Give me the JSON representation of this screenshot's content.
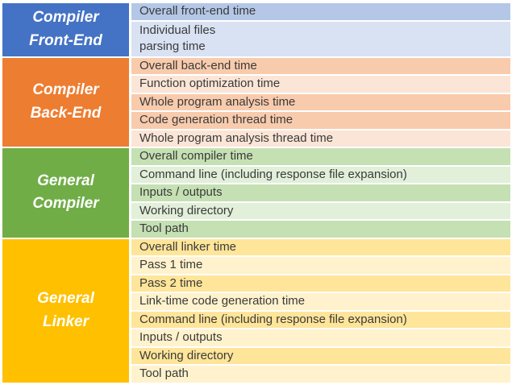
{
  "table": {
    "description": "Build timing categories table",
    "text_color": "#3a3a3a",
    "header_text_color": "#ffffff",
    "sections": [
      {
        "id": "compiler-front-end",
        "label_lines": [
          "Compiler",
          "Front-End"
        ],
        "header_color": "#4472C4",
        "tint_dark": "#B4C7E7",
        "tint_light": "#D9E2F3",
        "rows": [
          {
            "lines": [
              "Overall front-end time"
            ],
            "shade": "dark"
          },
          {
            "lines": [
              "Individual files",
              "parsing time"
            ],
            "shade": "light"
          }
        ]
      },
      {
        "id": "compiler-back-end",
        "label_lines": [
          "Compiler",
          "Back-End"
        ],
        "header_color": "#ED7D31",
        "tint_dark": "#F8CBAD",
        "tint_light": "#FBE5D6",
        "rows": [
          {
            "lines": [
              "Overall back-end time"
            ],
            "shade": "dark"
          },
          {
            "lines": [
              "Function optimization time"
            ],
            "shade": "light"
          },
          {
            "lines": [
              "Whole program analysis time"
            ],
            "shade": "dark"
          },
          {
            "lines": [
              "Code generation thread time"
            ],
            "shade": "dark"
          },
          {
            "lines": [
              "Whole program analysis thread time"
            ],
            "shade": "light"
          }
        ]
      },
      {
        "id": "general-compiler",
        "label_lines": [
          "General",
          "Compiler"
        ],
        "header_color": "#70AD47",
        "tint_dark": "#C5E0B3",
        "tint_light": "#E2EFD9",
        "rows": [
          {
            "lines": [
              "Overall compiler time"
            ],
            "shade": "dark"
          },
          {
            "lines": [
              "Command line (including response file expansion)"
            ],
            "shade": "light"
          },
          {
            "lines": [
              "Inputs / outputs"
            ],
            "shade": "dark"
          },
          {
            "lines": [
              "Working directory"
            ],
            "shade": "light"
          },
          {
            "lines": [
              "Tool path"
            ],
            "shade": "dark"
          }
        ]
      },
      {
        "id": "general-linker",
        "label_lines": [
          "General",
          "Linker"
        ],
        "header_color": "#FFC000",
        "tint_dark": "#FFE599",
        "tint_light": "#FFF2CC",
        "rows": [
          {
            "lines": [
              "Overall linker time"
            ],
            "shade": "dark"
          },
          {
            "lines": [
              "Pass 1 time"
            ],
            "shade": "light"
          },
          {
            "lines": [
              "Pass 2 time"
            ],
            "shade": "dark"
          },
          {
            "lines": [
              "Link-time code generation time"
            ],
            "shade": "light"
          },
          {
            "lines": [
              "Command line (including response file expansion)"
            ],
            "shade": "dark"
          },
          {
            "lines": [
              "Inputs / outputs"
            ],
            "shade": "light"
          },
          {
            "lines": [
              "Working directory"
            ],
            "shade": "dark"
          },
          {
            "lines": [
              "Tool path"
            ],
            "shade": "light"
          }
        ]
      }
    ]
  }
}
